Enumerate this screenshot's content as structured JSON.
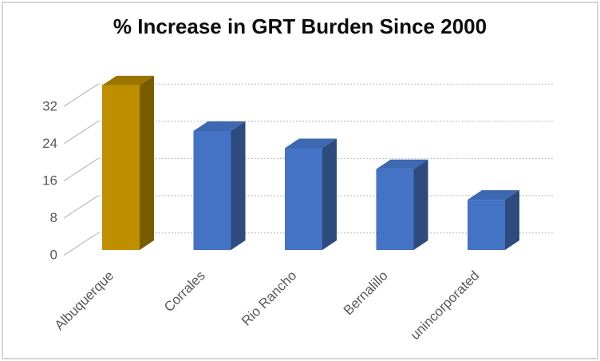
{
  "chart_data": {
    "type": "bar",
    "variant": "3d-column",
    "title": "% Increase in GRT Burden Since 2000",
    "categories": [
      "Albuquerque",
      "Corrales",
      "Rio Rancho",
      "Bernalillo",
      "unincorporated"
    ],
    "values": [
      35.4,
      25.6,
      21.9,
      17.4,
      10.8
    ],
    "xlabel": "",
    "ylabel": "",
    "yticks": [
      0,
      8,
      16,
      24,
      32
    ],
    "ylim": [
      0,
      36
    ],
    "grid": true,
    "legend": false,
    "colors": {
      "title": "#0d0d0d",
      "label": "#595959",
      "gridline": "#c8c6c4",
      "connector": "#bdbbb9",
      "border": "#d7d5d3",
      "bars": [
        {
          "front": "#BF8F00",
          "side": "#7A5C00",
          "top": "#9B7500"
        },
        {
          "front": "#4472C4",
          "side": "#2D4B7D",
          "top": "#3E68B2"
        },
        {
          "front": "#4472C4",
          "side": "#2D4B7D",
          "top": "#3E68B2"
        },
        {
          "front": "#4472C4",
          "side": "#2D4B7D",
          "top": "#3E68B2"
        },
        {
          "front": "#4472C4",
          "side": "#2D4B7D",
          "top": "#3E68B2"
        }
      ]
    }
  }
}
